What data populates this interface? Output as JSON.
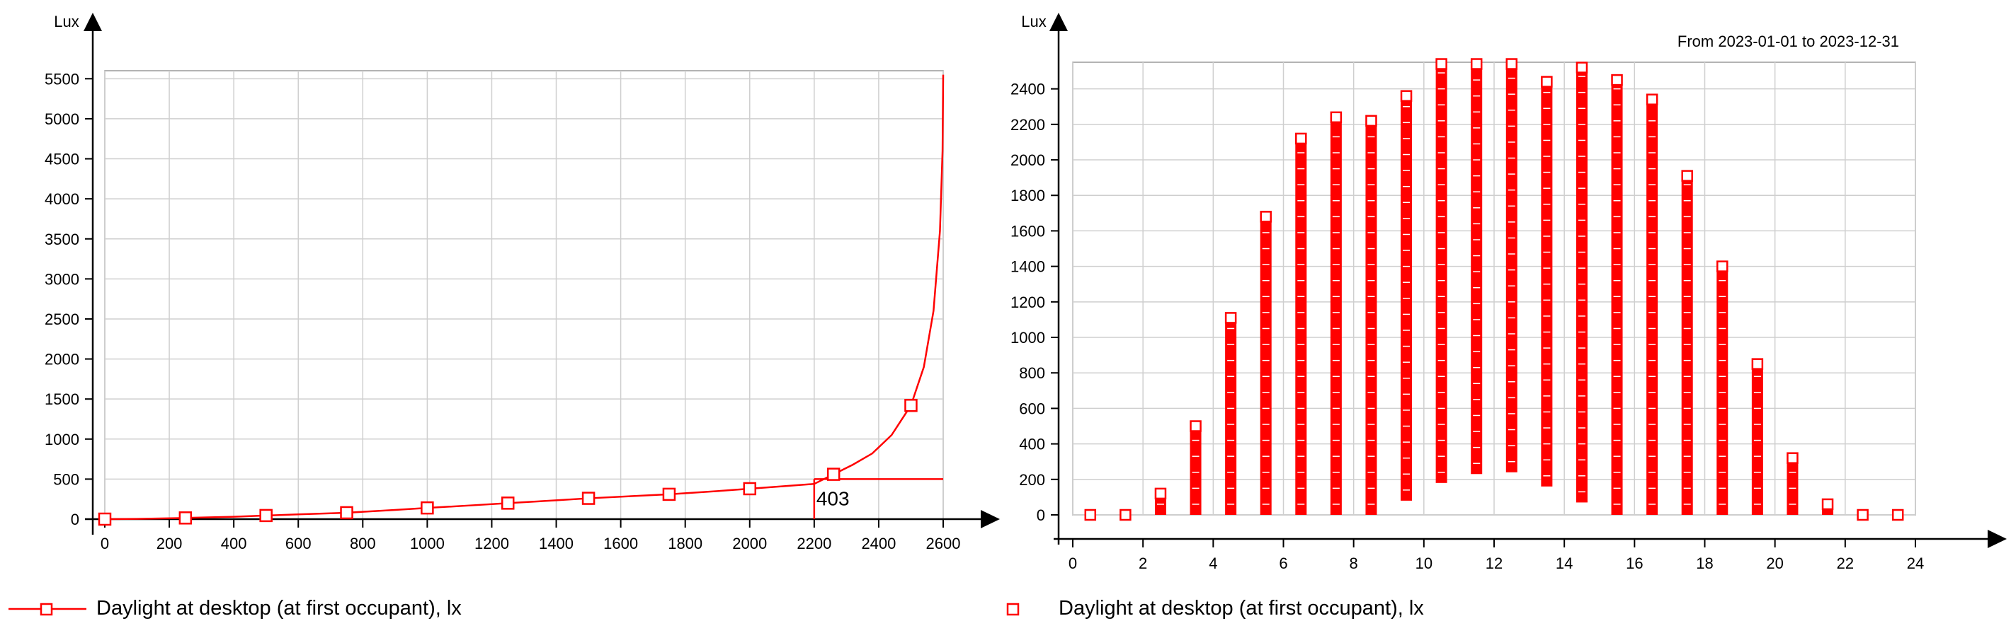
{
  "chart_data": [
    {
      "type": "line",
      "y_unit_label": "Lux",
      "xlim": [
        0,
        2600
      ],
      "ylim": [
        0,
        5600
      ],
      "x_ticks": [
        0,
        200,
        400,
        600,
        800,
        1000,
        1200,
        1400,
        1600,
        1800,
        2000,
        2200,
        2400,
        2600
      ],
      "y_ticks": [
        0,
        500,
        1000,
        1500,
        2000,
        2500,
        3000,
        3500,
        4000,
        4500,
        5000,
        5500
      ],
      "grid": true,
      "legend_position": "bottom-left",
      "series": [
        {
          "name": "Daylight at desktop (at first occupant), lx",
          "color": "#ff0000",
          "x": [
            0,
            100,
            250,
            400,
            500,
            600,
            750,
            900,
            1000,
            1150,
            1250,
            1400,
            1500,
            1650,
            1750,
            1900,
            2000,
            2100,
            2200,
            2260,
            2320,
            2380,
            2440,
            2500,
            2540,
            2570,
            2590,
            2598,
            2600
          ],
          "y": [
            0,
            3,
            15,
            30,
            45,
            60,
            80,
            115,
            140,
            175,
            200,
            235,
            260,
            290,
            310,
            350,
            380,
            410,
            440,
            560,
            680,
            820,
            1050,
            1420,
            1900,
            2600,
            3600,
            4600,
            5550
          ],
          "markers": [
            {
              "x": 0,
              "y": 0
            },
            {
              "x": 250,
              "y": 15
            },
            {
              "x": 500,
              "y": 45
            },
            {
              "x": 750,
              "y": 80
            },
            {
              "x": 1000,
              "y": 140
            },
            {
              "x": 1250,
              "y": 200
            },
            {
              "x": 1500,
              "y": 260
            },
            {
              "x": 1750,
              "y": 310
            },
            {
              "x": 2000,
              "y": 380
            },
            {
              "x": 2260,
              "y": 560
            },
            {
              "x": 2500,
              "y": 1420
            }
          ]
        }
      ],
      "annotation": {
        "label": "403",
        "x": 2200,
        "y": 500
      }
    },
    {
      "type": "scatter",
      "y_unit_label": "Lux",
      "subtitle": "From 2023-01-01 to 2023-12-31",
      "xlim": [
        0,
        24
      ],
      "ylim": [
        0,
        2550
      ],
      "x_ticks": [
        0,
        2,
        4,
        6,
        8,
        10,
        12,
        14,
        16,
        18,
        20,
        22,
        24
      ],
      "y_ticks": [
        0,
        200,
        400,
        600,
        800,
        1000,
        1200,
        1400,
        1600,
        1800,
        2000,
        2200,
        2400
      ],
      "grid": true,
      "legend_position": "bottom-left",
      "series": [
        {
          "name": "Daylight at desktop (at first occupant), lx",
          "color": "#ff0000",
          "columns": [
            {
              "x": 0.5,
              "min": 0,
              "max": 0
            },
            {
              "x": 1.5,
              "min": 0,
              "max": 0
            },
            {
              "x": 2.5,
              "min": 0,
              "max": 120
            },
            {
              "x": 3.5,
              "min": 0,
              "max": 500
            },
            {
              "x": 4.5,
              "min": 0,
              "max": 1110
            },
            {
              "x": 5.5,
              "min": 0,
              "max": 1680
            },
            {
              "x": 6.5,
              "min": 0,
              "max": 2120
            },
            {
              "x": 7.5,
              "min": 0,
              "max": 2240
            },
            {
              "x": 8.5,
              "min": 0,
              "max": 2220
            },
            {
              "x": 9.5,
              "min": 80,
              "max": 2360
            },
            {
              "x": 10.5,
              "min": 180,
              "max": 2540
            },
            {
              "x": 11.5,
              "min": 230,
              "max": 2540
            },
            {
              "x": 12.5,
              "min": 240,
              "max": 2540
            },
            {
              "x": 13.5,
              "min": 160,
              "max": 2440
            },
            {
              "x": 14.5,
              "min": 70,
              "max": 2520
            },
            {
              "x": 15.5,
              "min": 0,
              "max": 2450
            },
            {
              "x": 16.5,
              "min": 0,
              "max": 2340
            },
            {
              "x": 17.5,
              "min": 0,
              "max": 1910
            },
            {
              "x": 18.5,
              "min": 0,
              "max": 1400
            },
            {
              "x": 19.5,
              "min": 0,
              "max": 850
            },
            {
              "x": 20.5,
              "min": 0,
              "max": 320
            },
            {
              "x": 21.5,
              "min": 0,
              "max": 60
            },
            {
              "x": 22.5,
              "min": 0,
              "max": 0
            },
            {
              "x": 23.5,
              "min": 0,
              "max": 0
            }
          ]
        }
      ]
    }
  ]
}
